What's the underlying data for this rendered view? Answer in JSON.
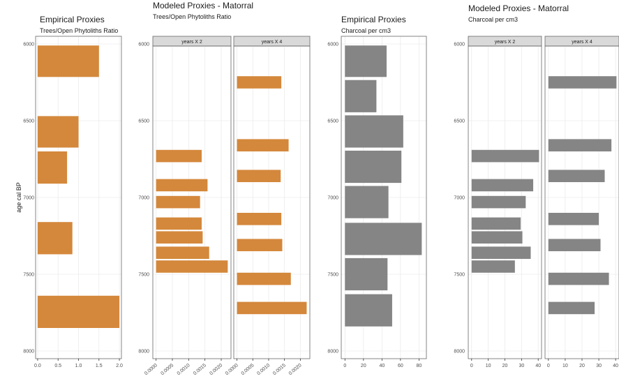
{
  "colors": {
    "orange": "#d4883c",
    "gray": "#858585",
    "grid": "#ebebeb",
    "strip": "#d9d9d9",
    "border": "#666666"
  },
  "chart_data": [
    {
      "type": "bar",
      "orientation": "horizontal",
      "title": "Empirical Proxies",
      "subtitle": "Trees/Open Phytoliths Ratio",
      "ylabel": "age cal BP",
      "color": "orange",
      "ylim": [
        5950,
        8050
      ],
      "yticks": [
        6000,
        6500,
        7000,
        7500,
        8000
      ],
      "xlim": [
        -0.05,
        2.05
      ],
      "xticks": [
        "0.0",
        "0.5",
        "1.0",
        "1.5",
        "2.0"
      ],
      "xtick_values": [
        0,
        0.5,
        1.0,
        1.5,
        2.0
      ],
      "facets": [
        {
          "strip": "",
          "bars": [
            {
              "top": 6010,
              "bottom": 6215,
              "value": 1.5
            },
            {
              "top": 6470,
              "bottom": 6675,
              "value": 1.0
            },
            {
              "top": 6700,
              "bottom": 6910,
              "value": 0.72
            },
            {
              "top": 7160,
              "bottom": 7370,
              "value": 0.85
            },
            {
              "top": 7640,
              "bottom": 7850,
              "value": 2.0
            }
          ]
        }
      ]
    },
    {
      "type": "bar",
      "orientation": "horizontal",
      "title": "Modeled Proxies - Matorral",
      "subtitle": "Trees/Open Phytoliths Ratio",
      "color": "orange",
      "ylim": [
        5950,
        8050
      ],
      "yticks": [
        6000,
        6500,
        7000,
        7500,
        8000
      ],
      "xlim": [
        -0.0001,
        0.0023
      ],
      "xticks": [
        "0.0000",
        "0.0005",
        "0.0010",
        "0.0015",
        "0.0020"
      ],
      "xtick_values": [
        0,
        0.0005,
        0.001,
        0.0015,
        0.002
      ],
      "facets": [
        {
          "strip": "years X 2",
          "bars": [
            {
              "top": 6690,
              "bottom": 6770,
              "value": 0.0014
            },
            {
              "top": 6880,
              "bottom": 6960,
              "value": 0.00158
            },
            {
              "top": 6990,
              "bottom": 7070,
              "value": 0.00135
            },
            {
              "top": 7130,
              "bottom": 7210,
              "value": 0.0014
            },
            {
              "top": 7220,
              "bottom": 7300,
              "value": 0.00143
            },
            {
              "top": 7320,
              "bottom": 7400,
              "value": 0.00163
            },
            {
              "top": 7410,
              "bottom": 7490,
              "value": 0.0022
            }
          ]
        },
        {
          "strip": "years X 4",
          "bars": [
            {
              "top": 6210,
              "bottom": 6290,
              "value": 0.0014
            },
            {
              "top": 6620,
              "bottom": 6700,
              "value": 0.00163
            },
            {
              "top": 6820,
              "bottom": 6900,
              "value": 0.00138
            },
            {
              "top": 7100,
              "bottom": 7180,
              "value": 0.0014
            },
            {
              "top": 7270,
              "bottom": 7350,
              "value": 0.00143
            },
            {
              "top": 7490,
              "bottom": 7570,
              "value": 0.0017
            },
            {
              "top": 7680,
              "bottom": 7760,
              "value": 0.0022
            }
          ]
        }
      ]
    },
    {
      "type": "bar",
      "orientation": "horizontal",
      "title": "Empirical Proxies",
      "subtitle": "Charcoal per cm3",
      "color": "gray",
      "ylim": [
        5950,
        8050
      ],
      "yticks": [
        6000,
        6500,
        7000,
        7500,
        8000
      ],
      "xlim": [
        -4,
        88
      ],
      "xticks": [
        "0",
        "20",
        "40",
        "60",
        "80"
      ],
      "xtick_values": [
        0,
        20,
        40,
        60,
        80
      ],
      "facets": [
        {
          "strip": "",
          "bars": [
            {
              "top": 6010,
              "bottom": 6215,
              "value": 45
            },
            {
              "top": 6235,
              "bottom": 6445,
              "value": 34
            },
            {
              "top": 6465,
              "bottom": 6675,
              "value": 63
            },
            {
              "top": 6695,
              "bottom": 6905,
              "value": 61
            },
            {
              "top": 6925,
              "bottom": 7135,
              "value": 47
            },
            {
              "top": 7165,
              "bottom": 7375,
              "value": 83
            },
            {
              "top": 7395,
              "bottom": 7605,
              "value": 46
            },
            {
              "top": 7630,
              "bottom": 7840,
              "value": 51
            }
          ]
        }
      ]
    },
    {
      "type": "bar",
      "orientation": "horizontal",
      "title": "Modeled Proxies - Matorral",
      "subtitle": "Charcoal per cm3",
      "color": "gray",
      "ylim": [
        5950,
        8050
      ],
      "yticks": [
        6000,
        6500,
        7000,
        7500,
        8000
      ],
      "xlim": [
        -2,
        42
      ],
      "xticks": [
        "0",
        "10",
        "20",
        "30",
        "40"
      ],
      "xtick_values": [
        0,
        10,
        20,
        30,
        40
      ],
      "facets": [
        {
          "strip": "years X 2",
          "bars": [
            {
              "top": 6690,
              "bottom": 6770,
              "value": 40.5
            },
            {
              "top": 6880,
              "bottom": 6960,
              "value": 37
            },
            {
              "top": 6990,
              "bottom": 7070,
              "value": 32.5
            },
            {
              "top": 7130,
              "bottom": 7210,
              "value": 29.5
            },
            {
              "top": 7220,
              "bottom": 7300,
              "value": 30.5
            },
            {
              "top": 7320,
              "bottom": 7400,
              "value": 35.5
            },
            {
              "top": 7410,
              "bottom": 7490,
              "value": 26
            }
          ]
        },
        {
          "strip": "years X 4",
          "bars": [
            {
              "top": 6210,
              "bottom": 6290,
              "value": 40.5
            },
            {
              "top": 6620,
              "bottom": 6700,
              "value": 37.5
            },
            {
              "top": 6820,
              "bottom": 6900,
              "value": 33.5
            },
            {
              "top": 7100,
              "bottom": 7180,
              "value": 30
            },
            {
              "top": 7270,
              "bottom": 7350,
              "value": 31
            },
            {
              "top": 7490,
              "bottom": 7570,
              "value": 36
            },
            {
              "top": 7680,
              "bottom": 7760,
              "value": 27.5
            }
          ]
        }
      ]
    }
  ]
}
